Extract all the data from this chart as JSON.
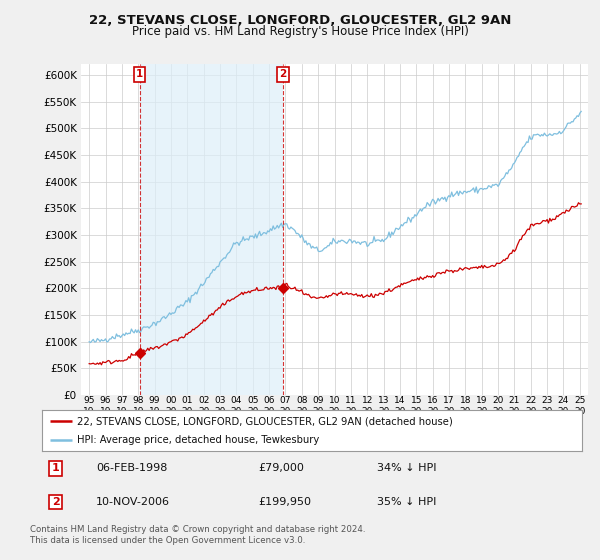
{
  "title_line1": "22, STEVANS CLOSE, LONGFORD, GLOUCESTER, GL2 9AN",
  "title_line2": "Price paid vs. HM Land Registry's House Price Index (HPI)",
  "legend_line1": "22, STEVANS CLOSE, LONGFORD, GLOUCESTER, GL2 9AN (detached house)",
  "legend_line2": "HPI: Average price, detached house, Tewkesbury",
  "footnote": "Contains HM Land Registry data © Crown copyright and database right 2024.\nThis data is licensed under the Open Government Licence v3.0.",
  "annotation1_label": "1",
  "annotation1_text": "06-FEB-1998",
  "annotation1_price": "£79,000",
  "annotation1_hpi": "34% ↓ HPI",
  "annotation2_label": "2",
  "annotation2_text": "10-NOV-2006",
  "annotation2_price": "£199,950",
  "annotation2_hpi": "35% ↓ HPI",
  "sale1_year": 1998.08,
  "sale1_price": 79000,
  "sale2_year": 2006.83,
  "sale2_price": 199950,
  "hpi_color": "#7fbfdf",
  "hpi_fill_color": "#ddeef8",
  "sale_color": "#cc0000",
  "background_color": "#f0f0f0",
  "plot_bg_color": "#ffffff",
  "ylim_min": 0,
  "ylim_max": 620000,
  "yticks": [
    0,
    50000,
    100000,
    150000,
    200000,
    250000,
    300000,
    350000,
    400000,
    450000,
    500000,
    550000,
    600000
  ],
  "xlim_min": 1994.5,
  "xlim_max": 2025.5,
  "xticks": [
    1995,
    1996,
    1997,
    1998,
    1999,
    2000,
    2001,
    2002,
    2003,
    2004,
    2005,
    2006,
    2007,
    2008,
    2009,
    2010,
    2011,
    2012,
    2013,
    2014,
    2015,
    2016,
    2017,
    2018,
    2019,
    2020,
    2021,
    2022,
    2023,
    2024,
    2025
  ],
  "hpi_key_years": [
    1995.0,
    1996.0,
    1997.0,
    1998.0,
    1999.0,
    2000.0,
    2001.0,
    2002.0,
    2003.0,
    2004.0,
    2005.0,
    2006.0,
    2006.5,
    2007.0,
    2007.5,
    2008.0,
    2008.5,
    2009.0,
    2009.5,
    2010.0,
    2011.0,
    2012.0,
    2013.0,
    2014.0,
    2015.0,
    2015.5,
    2016.0,
    2016.5,
    2017.0,
    2017.5,
    2018.0,
    2019.0,
    2020.0,
    2020.5,
    2021.0,
    2021.5,
    2022.0,
    2022.5,
    2023.0,
    2023.5,
    2024.0,
    2024.5,
    2025.0
  ],
  "hpi_key_vals": [
    98000,
    103000,
    112000,
    120000,
    133000,
    150000,
    172000,
    208000,
    248000,
    285000,
    295000,
    308000,
    315000,
    320000,
    310000,
    295000,
    280000,
    272000,
    278000,
    290000,
    292000,
    285000,
    293000,
    318000,
    340000,
    355000,
    362000,
    368000,
    375000,
    378000,
    382000,
    388000,
    395000,
    415000,
    435000,
    465000,
    485000,
    490000,
    490000,
    492000,
    500000,
    515000,
    530000
  ],
  "prop_key_years": [
    1995.0,
    1996.0,
    1997.0,
    1997.5,
    1998.08,
    1999.0,
    2000.0,
    2001.0,
    2002.0,
    2003.0,
    2004.0,
    2005.0,
    2006.0,
    2006.83,
    2007.0,
    2007.5,
    2008.0,
    2008.5,
    2009.0,
    2009.5,
    2010.0,
    2011.0,
    2012.0,
    2013.0,
    2014.0,
    2015.0,
    2016.0,
    2017.0,
    2018.0,
    2019.0,
    2020.0,
    2020.5,
    2021.0,
    2021.5,
    2022.0,
    2022.5,
    2023.0,
    2023.5,
    2024.0,
    2024.5,
    2025.0
  ],
  "prop_key_vals": [
    58000,
    60000,
    65000,
    70000,
    79000,
    86000,
    97000,
    112000,
    136000,
    162000,
    185000,
    194000,
    199000,
    199950,
    205000,
    198000,
    190000,
    182000,
    178000,
    182000,
    188000,
    187000,
    183000,
    189000,
    203000,
    214000,
    223000,
    231000,
    235000,
    238000,
    242000,
    255000,
    270000,
    295000,
    315000,
    320000,
    325000,
    330000,
    340000,
    348000,
    355000
  ]
}
